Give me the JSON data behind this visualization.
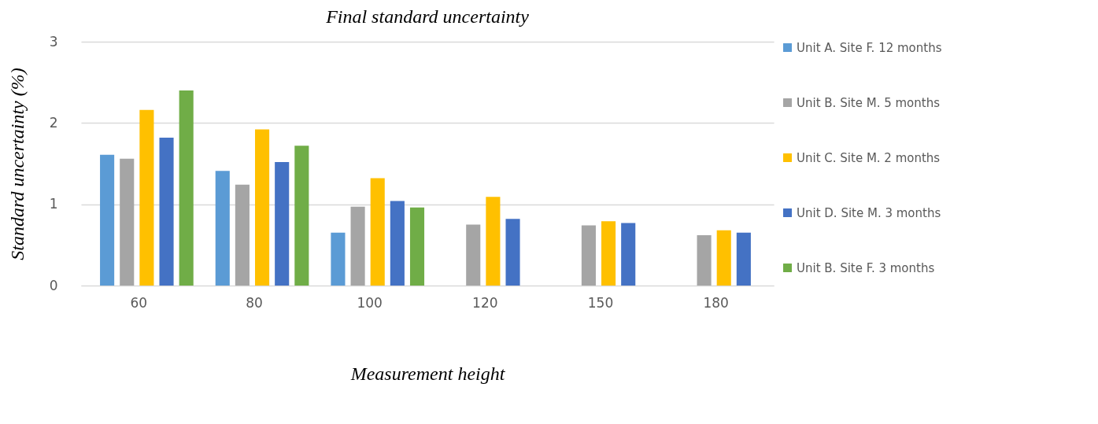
{
  "chart_data": {
    "type": "bar",
    "title": "Final standard uncertainty",
    "xlabel": "Measurement height",
    "ylabel": "Standard uncertainty (%)",
    "categories": [
      "60",
      "80",
      "100",
      "120",
      "150",
      "180"
    ],
    "series": [
      {
        "name": "Unit A. Site F. 12 months",
        "color": "#5b9bd5",
        "values": [
          1.61,
          1.41,
          0.65,
          null,
          null,
          null
        ]
      },
      {
        "name": "Unit B. Site M. 5 months",
        "color": "#a5a5a5",
        "values": [
          1.56,
          1.24,
          0.97,
          0.75,
          0.74,
          0.62
        ]
      },
      {
        "name": "Unit C. Site M. 2 months",
        "color": "#ffc000",
        "values": [
          2.16,
          1.92,
          1.32,
          1.09,
          0.79,
          0.68
        ]
      },
      {
        "name": "Unit D. Site M. 3 months",
        "color": "#4472c4",
        "values": [
          1.82,
          1.52,
          1.04,
          0.82,
          0.77,
          0.65
        ]
      },
      {
        "name": "Unit B. Site F. 3 months",
        "color": "#70ad47",
        "values": [
          2.4,
          1.72,
          0.96,
          null,
          null,
          null
        ]
      }
    ],
    "ylim": [
      0,
      3
    ],
    "yticks": [
      0,
      1,
      2,
      3
    ],
    "grid": "y",
    "legend": "right"
  }
}
